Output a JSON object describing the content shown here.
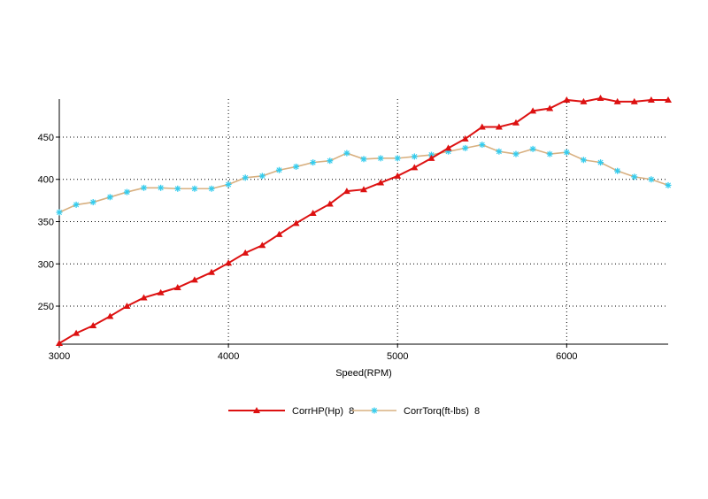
{
  "chart_data": {
    "type": "line",
    "title": "",
    "xlabel": "Speed(RPM)",
    "ylabel": "",
    "xlim": [
      3000,
      6600
    ],
    "ylim": [
      205,
      495
    ],
    "x_ticks": [
      3000,
      4000,
      5000,
      6000
    ],
    "y_ticks": [
      250,
      300,
      350,
      400,
      450
    ],
    "grid": true,
    "legend_position": "bottom",
    "x": [
      3000,
      3100,
      3200,
      3300,
      3400,
      3500,
      3600,
      3700,
      3800,
      3900,
      4000,
      4100,
      4200,
      4300,
      4400,
      4500,
      4600,
      4700,
      4800,
      4900,
      5000,
      5100,
      5200,
      5300,
      5400,
      5500,
      5600,
      5700,
      5800,
      5900,
      6000,
      6100,
      6200,
      6300,
      6400,
      6500,
      6600
    ],
    "series": [
      {
        "name": "CorrHP(Hp)  8",
        "color": "#dd1111",
        "marker": "triangle",
        "values": [
          206,
          218,
          227,
          238,
          250,
          260,
          266,
          272,
          281,
          290,
          301,
          313,
          322,
          335,
          348,
          360,
          371,
          386,
          388,
          396,
          404,
          414,
          425,
          437,
          448,
          462,
          462,
          467,
          481,
          484,
          494,
          492,
          496,
          492,
          492,
          494,
          494
        ]
      },
      {
        "name": "CorrTorq(ft-lbs)  8",
        "color": "#d8b080",
        "marker_color": "#33ccee",
        "marker": "star",
        "values": [
          361,
          370,
          373,
          379,
          385,
          390,
          390,
          389,
          389,
          389,
          394,
          402,
          404,
          411,
          415,
          420,
          422,
          431,
          424,
          425,
          425,
          427,
          429,
          433,
          437,
          441,
          433,
          430,
          436,
          430,
          432,
          423,
          420,
          410,
          403,
          400,
          393
        ]
      }
    ]
  }
}
